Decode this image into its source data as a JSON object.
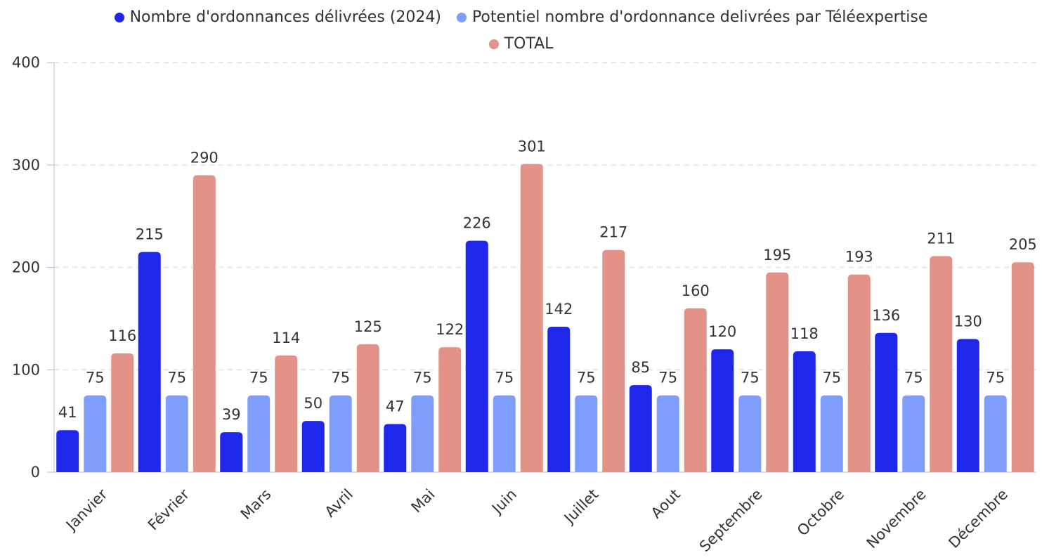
{
  "chart_data": {
    "type": "bar",
    "categories": [
      "Janvier",
      "Février",
      "Mars",
      "Avril",
      "Mai",
      "Juin",
      "Juillet",
      "Aout",
      "Septembre",
      "Octobre",
      "Novembre",
      "Décembre"
    ],
    "series": [
      {
        "name": "Nombre d'ordonnances délivrées (2024)",
        "color": "#1f27ea",
        "values": [
          41,
          215,
          39,
          50,
          47,
          226,
          142,
          85,
          120,
          118,
          136,
          130
        ]
      },
      {
        "name": "Potentiel nombre d'ordonnance delivrées par Téléexpertise",
        "color": "#7f9dfa",
        "values": [
          75,
          75,
          75,
          75,
          75,
          75,
          75,
          75,
          75,
          75,
          75,
          75
        ]
      },
      {
        "name": "TOTAL",
        "color": "#e39287",
        "values": [
          116,
          290,
          114,
          125,
          122,
          301,
          217,
          160,
          195,
          193,
          211,
          205
        ]
      }
    ],
    "ylim": [
      0,
      400
    ],
    "yticks": [
      "0",
      "100",
      "200",
      "300",
      "400"
    ],
    "grid": "horizontal dashed",
    "legend_position": "top-center",
    "data_labels": true
  }
}
